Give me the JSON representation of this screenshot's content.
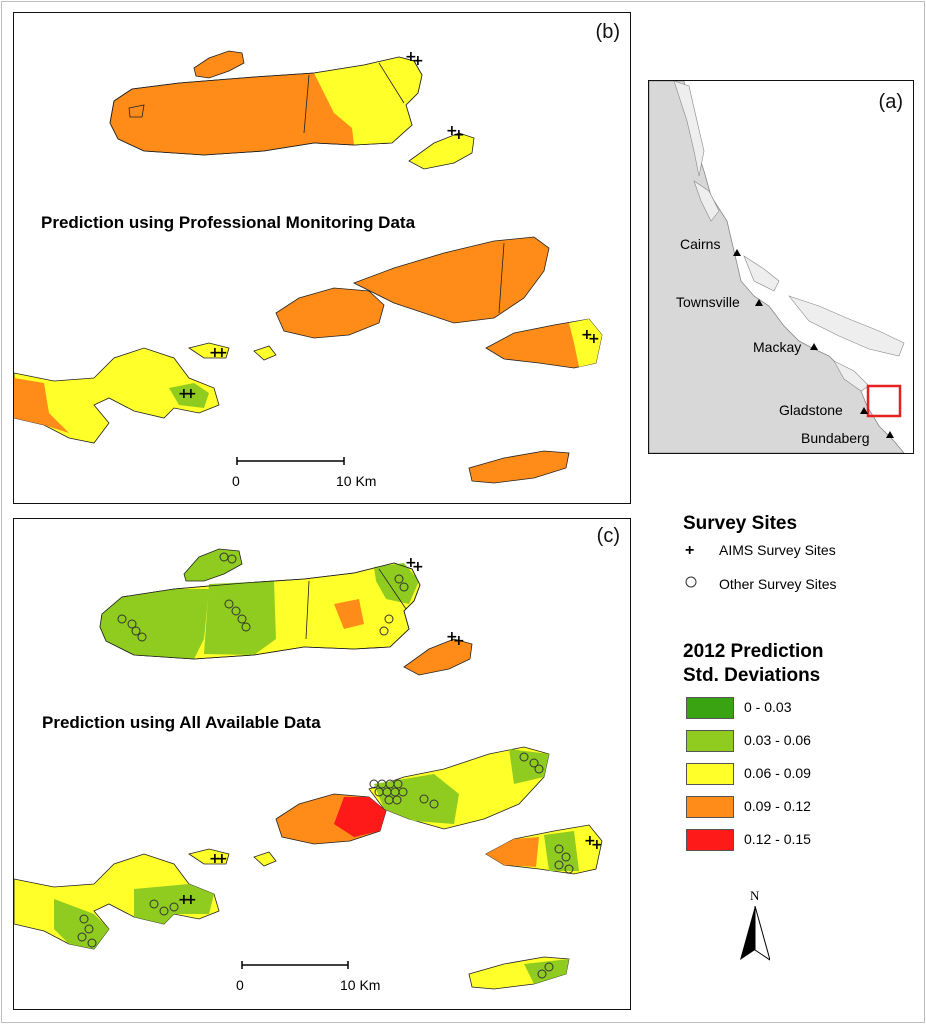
{
  "panel_b": {
    "letter": "(b)",
    "title": "Prediction using Professional Monitoring Data",
    "scale_zero": "0",
    "scale_end": "10 Km"
  },
  "panel_c": {
    "letter": "(c)",
    "title": "Prediction using All Available Data",
    "scale_zero": "0",
    "scale_end": "10 Km"
  },
  "panel_a": {
    "letter": "(a)",
    "cities": [
      "Cairns",
      "Townsville",
      "Mackay",
      "Gladstone",
      "Bundaberg"
    ]
  },
  "legend": {
    "sites_title": "Survey Sites",
    "aims_label": "AIMS Survey Sites",
    "other_label": "Other Survey Sites",
    "std_title_line1": "2012 Prediction",
    "std_title_line2": "Std. Deviations",
    "classes": [
      {
        "label": "0 - 0.03",
        "color": "#3aa312"
      },
      {
        "label": "0.03 - 0.06",
        "color": "#8fcc1f"
      },
      {
        "label": "0.06 - 0.09",
        "color": "#ffff2a"
      },
      {
        "label": "0.09 - 0.12",
        "color": "#ff8c19"
      },
      {
        "label": "0.12 - 0.15",
        "color": "#ff1a1a"
      }
    ]
  },
  "north_arrow": {
    "label": "N",
    "icon": "north-arrow-icon"
  }
}
